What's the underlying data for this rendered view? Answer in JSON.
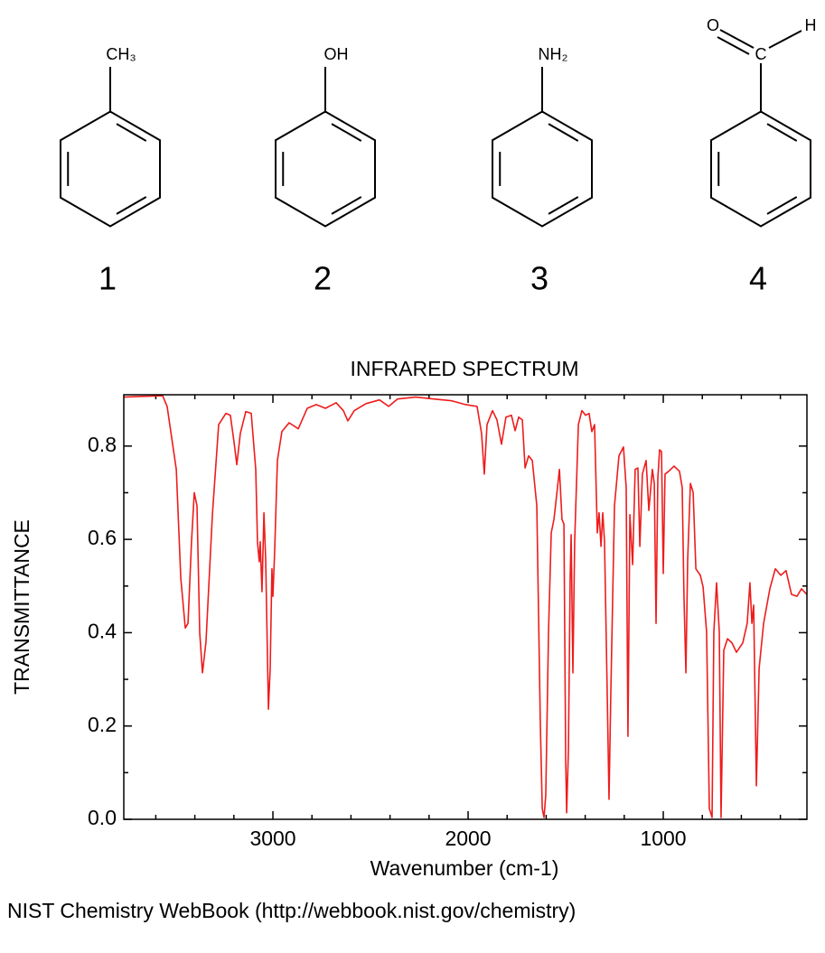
{
  "molecules": [
    {
      "labels": [
        "CH₃"
      ],
      "number": "1"
    },
    {
      "labels": [
        "OH"
      ],
      "number": "2"
    },
    {
      "labels": [
        "NH₂"
      ],
      "number": "3"
    },
    {
      "labels": [
        "O",
        "C",
        "H"
      ],
      "number": "4"
    }
  ],
  "chart_data": {
    "type": "line",
    "title": "INFRARED SPECTRUM",
    "x_label": "Wavenumber (cm-1)",
    "y_label": "TRANSMITTANCE",
    "xlim": [
      3764,
      264
    ],
    "ylim": [
      0,
      0.91
    ],
    "xticks": [
      3000,
      2000,
      1000
    ],
    "xminor": [
      3600,
      3400,
      3200,
      2800,
      2600,
      2400,
      2200,
      1800,
      1600,
      1400,
      1200,
      800,
      600,
      400
    ],
    "yticks": [
      {
        "value": 0,
        "label": "0.0"
      },
      0.2,
      0.4,
      0.6,
      0.8
    ],
    "yminor": [
      0.1,
      0.3,
      0.5,
      0.7
    ],
    "series": [
      {
        "name": "spectrum",
        "color": "#ee1c1c",
        "x": [
          3764,
          3565,
          3542,
          3495,
          3472,
          3449,
          3435,
          3417,
          3403,
          3389,
          3375,
          3361,
          3343,
          3310,
          3278,
          3241,
          3218,
          3199,
          3185,
          3167,
          3139,
          3111,
          3088,
          3079,
          3070,
          3065,
          3056,
          3046,
          3037,
          3023,
          3014,
          3005,
          3000,
          2991,
          2977,
          2954,
          2917,
          2870,
          2824,
          2778,
          2731,
          2676,
          2639,
          2616,
          2583,
          2523,
          2454,
          2407,
          2361,
          2269,
          2176,
          2083,
          2014,
          1954,
          1931,
          1917,
          1903,
          1875,
          1852,
          1829,
          1806,
          1778,
          1759,
          1741,
          1722,
          1708,
          1690,
          1671,
          1648,
          1630,
          1620,
          1611,
          1602,
          1588,
          1574,
          1560,
          1542,
          1532,
          1519,
          1509,
          1500,
          1495,
          1486,
          1477,
          1472,
          1463,
          1454,
          1435,
          1417,
          1398,
          1380,
          1366,
          1352,
          1338,
          1329,
          1319,
          1310,
          1301,
          1287,
          1278,
          1269,
          1250,
          1227,
          1204,
          1190,
          1181,
          1171,
          1157,
          1144,
          1130,
          1120,
          1107,
          1088,
          1074,
          1056,
          1046,
          1037,
          1028,
          1019,
          1009,
          1000,
          991,
          972,
          945,
          917,
          903,
          894,
          884,
          875,
          861,
          847,
          833,
          810,
          796,
          778,
          764,
          750,
          741,
          727,
          713,
          704,
          690,
          671,
          648,
          625,
          593,
          570,
          556,
          546,
          537,
          523,
          509,
          486,
          454,
          426,
          398,
          371,
          343,
          315,
          292,
          264
        ],
        "values": [
          0.905,
          0.908,
          0.885,
          0.75,
          0.517,
          0.41,
          0.42,
          0.595,
          0.7,
          0.672,
          0.4,
          0.314,
          0.38,
          0.653,
          0.846,
          0.87,
          0.866,
          0.808,
          0.76,
          0.827,
          0.874,
          0.87,
          0.75,
          0.595,
          0.552,
          0.595,
          0.488,
          0.657,
          0.556,
          0.236,
          0.323,
          0.537,
          0.478,
          0.575,
          0.769,
          0.831,
          0.85,
          0.837,
          0.881,
          0.889,
          0.881,
          0.893,
          0.876,
          0.854,
          0.876,
          0.891,
          0.899,
          0.885,
          0.901,
          0.905,
          0.901,
          0.897,
          0.889,
          0.885,
          0.827,
          0.74,
          0.846,
          0.876,
          0.856,
          0.804,
          0.862,
          0.866,
          0.833,
          0.862,
          0.856,
          0.753,
          0.779,
          0.769,
          0.672,
          0.207,
          0.023,
          0.004,
          0.052,
          0.401,
          0.614,
          0.643,
          0.711,
          0.75,
          0.643,
          0.633,
          0.13,
          0.014,
          0.149,
          0.517,
          0.61,
          0.314,
          0.595,
          0.846,
          0.876,
          0.866,
          0.87,
          0.831,
          0.846,
          0.614,
          0.657,
          0.585,
          0.657,
          0.595,
          0.265,
          0.043,
          0.265,
          0.672,
          0.779,
          0.798,
          0.711,
          0.178,
          0.653,
          0.546,
          0.75,
          0.753,
          0.585,
          0.74,
          0.769,
          0.662,
          0.75,
          0.72,
          0.42,
          0.73,
          0.792,
          0.788,
          0.527,
          0.74,
          0.746,
          0.757,
          0.746,
          0.711,
          0.478,
          0.314,
          0.556,
          0.72,
          0.701,
          0.537,
          0.523,
          0.498,
          0.401,
          0.023,
          0.004,
          0.401,
          0.507,
          0.401,
          0.004,
          0.362,
          0.387,
          0.378,
          0.358,
          0.378,
          0.42,
          0.507,
          0.42,
          0.459,
          0.072,
          0.323,
          0.42,
          0.494,
          0.537,
          0.523,
          0.533,
          0.482,
          0.478,
          0.494,
          0.482
        ]
      }
    ]
  },
  "footer": "NIST Chemistry WebBook (http://webbook.nist.gov/chemistry)"
}
